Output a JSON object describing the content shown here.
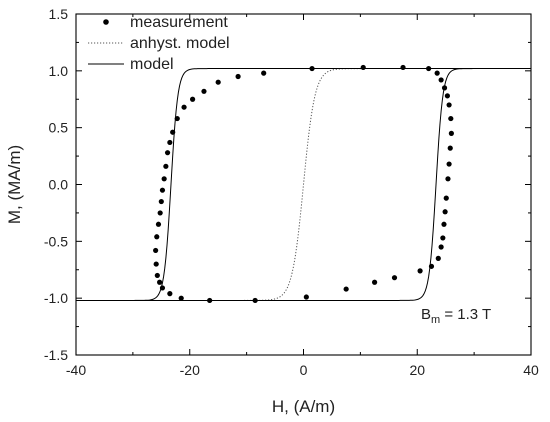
{
  "chart_data": {
    "type": "line",
    "xlabel": "H, (A/m)",
    "ylabel": "M, (MA/m)",
    "xlim": [
      -40,
      40
    ],
    "ylim": [
      -1.5,
      1.5
    ],
    "xticks": [
      -40,
      -20,
      0,
      20,
      40
    ],
    "yticks": [
      1.5,
      1.0,
      0.5,
      0.0,
      -0.5,
      -1.0,
      -1.5
    ],
    "xtick_labels": [
      "-40",
      "-20",
      "0",
      "20",
      "40"
    ],
    "ytick_labels": [
      "1.5",
      "1.0",
      "0.5",
      "0.0",
      "-0.5",
      "-1.0",
      "-1.5"
    ],
    "legend_position": "top-left",
    "annotation": {
      "main": "B",
      "sub": "m",
      "rest": " = 1.3 T"
    },
    "series": [
      {
        "name": "measurement",
        "style": "markers",
        "color": "#000000",
        "points": [
          [
            17.5,
            1.03
          ],
          [
            22.0,
            1.02
          ],
          [
            23.5,
            0.98
          ],
          [
            24.2,
            0.92
          ],
          [
            24.8,
            0.85
          ],
          [
            25.3,
            0.78
          ],
          [
            25.6,
            0.7
          ],
          [
            25.9,
            0.58
          ],
          [
            26.0,
            0.45
          ],
          [
            25.8,
            0.32
          ],
          [
            25.6,
            0.18
          ],
          [
            25.4,
            0.05
          ],
          [
            25.1,
            -0.12
          ],
          [
            24.9,
            -0.24
          ],
          [
            24.7,
            -0.35
          ],
          [
            24.5,
            -0.47
          ],
          [
            24.2,
            -0.55
          ],
          [
            23.7,
            -0.65
          ],
          [
            22.5,
            -0.72
          ],
          [
            20.5,
            -0.76
          ],
          [
            16.0,
            -0.82
          ],
          [
            12.5,
            -0.86
          ],
          [
            7.5,
            -0.92
          ],
          [
            0.5,
            -0.99
          ],
          [
            -8.5,
            -1.02
          ],
          [
            -16.5,
            -1.02
          ],
          [
            -21.5,
            -1.0
          ],
          [
            -23.5,
            -0.96
          ],
          [
            -24.8,
            -0.91
          ],
          [
            -25.3,
            -0.86
          ],
          [
            -25.7,
            -0.8
          ],
          [
            -25.9,
            -0.7
          ],
          [
            -26.0,
            -0.58
          ],
          [
            -25.8,
            -0.46
          ],
          [
            -25.5,
            -0.35
          ],
          [
            -25.2,
            -0.25
          ],
          [
            -25.0,
            -0.15
          ],
          [
            -24.8,
            -0.05
          ],
          [
            -24.5,
            0.05
          ],
          [
            -24.2,
            0.16
          ],
          [
            -23.9,
            0.28
          ],
          [
            -23.5,
            0.37
          ],
          [
            -23.0,
            0.46
          ],
          [
            -22.2,
            0.58
          ],
          [
            -21.0,
            0.68
          ],
          [
            -19.5,
            0.75
          ],
          [
            -17.5,
            0.82
          ],
          [
            -15.0,
            0.9
          ],
          [
            -11.5,
            0.95
          ],
          [
            -7.0,
            0.98
          ],
          [
            1.5,
            1.02
          ],
          [
            10.5,
            1.03
          ]
        ]
      },
      {
        "name": "anhyst. model",
        "style": "dotted",
        "color": "#555555",
        "curve": {
          "amp": 1.02,
          "center": 0.0,
          "width": 2.0
        }
      },
      {
        "name": "model",
        "style": "solid",
        "color": "#000000",
        "branches": [
          {
            "amp": 1.02,
            "center": 23.3,
            "width": 1.2
          },
          {
            "amp": 1.02,
            "center": -23.3,
            "width": 1.2
          }
        ]
      }
    ]
  }
}
